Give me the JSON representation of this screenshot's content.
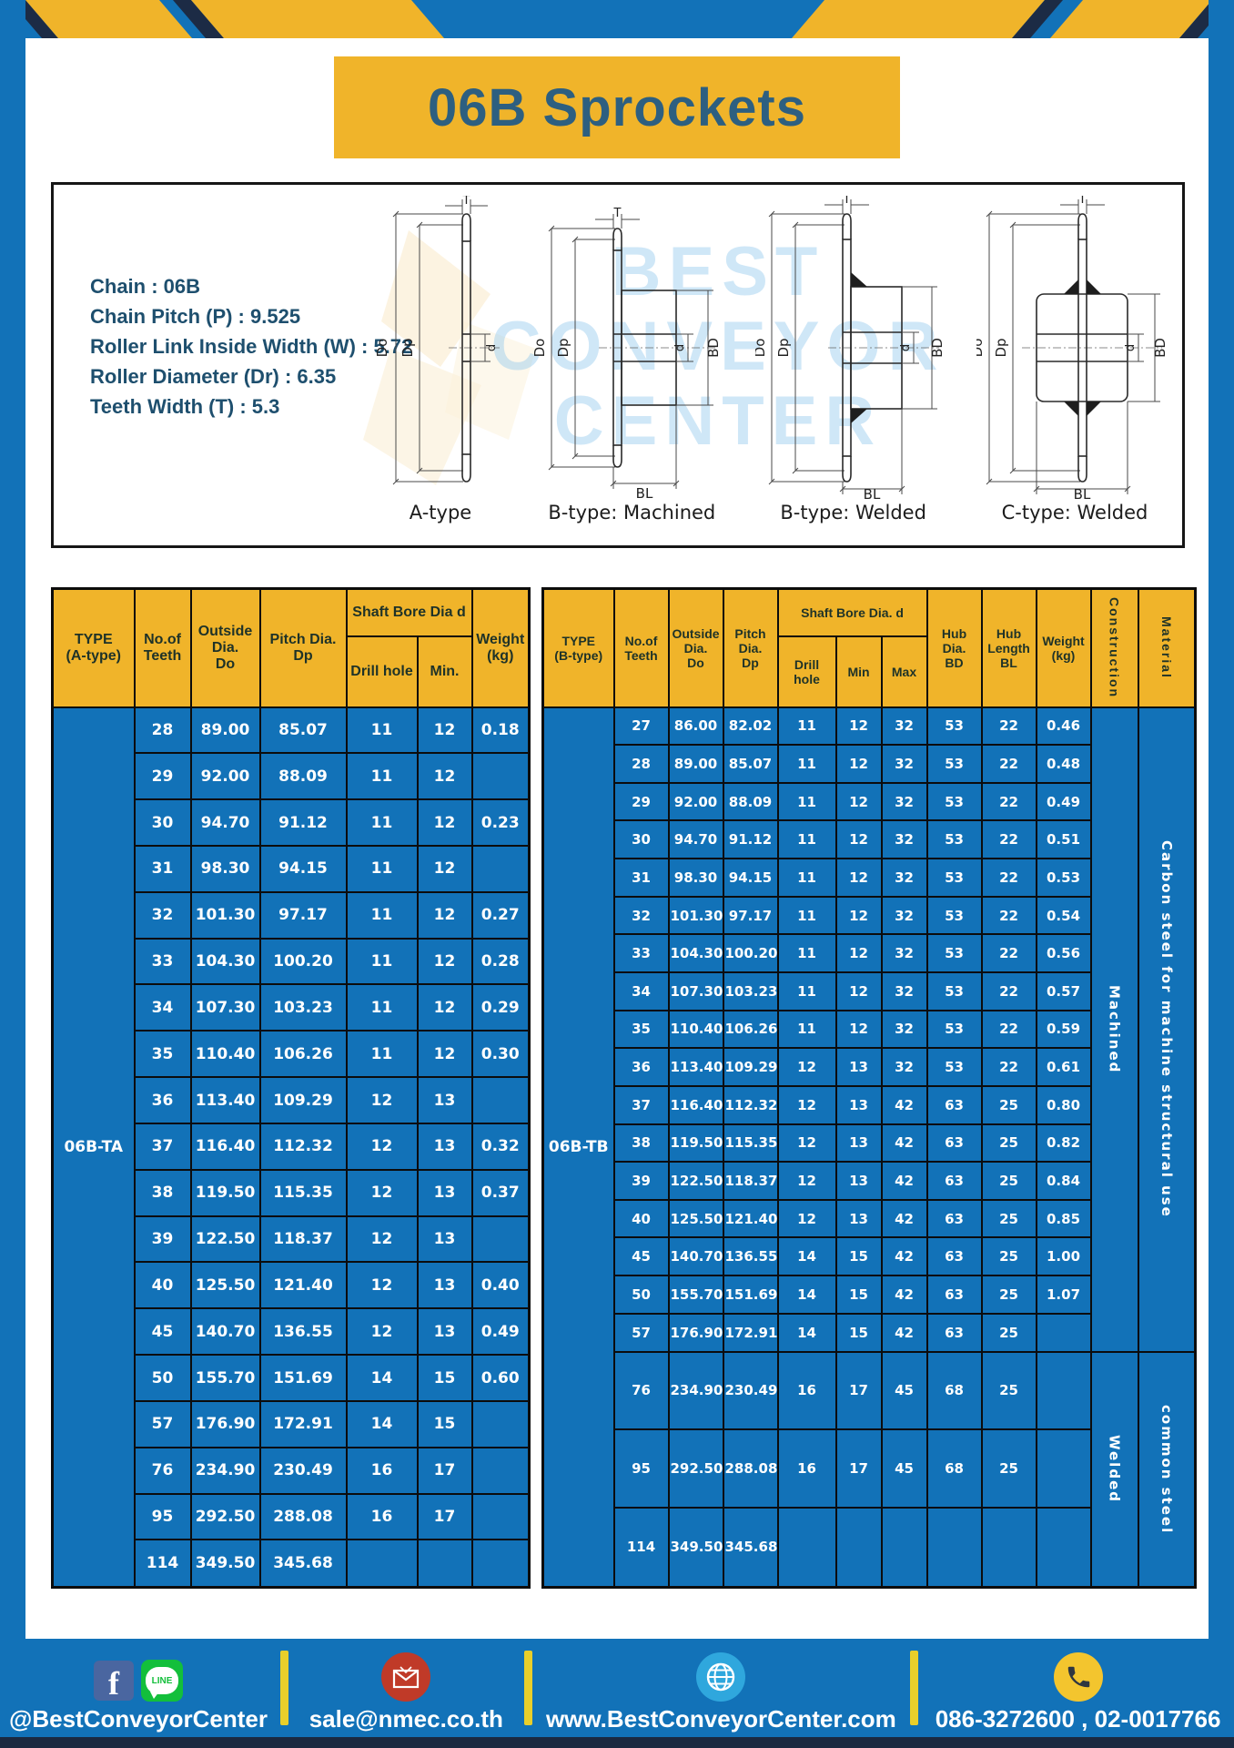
{
  "colors": {
    "frame_blue": "#1272b8",
    "accent_yellow": "#f0b42a",
    "shadow_navy": "#1c2b45",
    "title_teal": "#2d5f80",
    "table_header_yellow": "#f0b42a",
    "table_body_blue": "#1272b8",
    "footer_divider_yellow": "#e9cf2b"
  },
  "header": {
    "title": "06B Sprockets"
  },
  "specs": {
    "lines": [
      "Chain : 06B",
      "Chain Pitch (P) : 9.525",
      "Roller Link Inside Width (W) : 5.72",
      "Roller Diameter (Dr) : 6.35",
      "Teeth Width (T) : 5.3"
    ]
  },
  "watermark": {
    "lines": [
      "BEST",
      "CONVEYOR",
      "CENTER"
    ]
  },
  "drawings": [
    {
      "caption": "A-type",
      "dims": {
        "t": "T",
        "do": "Do",
        "dp": "Dp",
        "d": "d"
      }
    },
    {
      "caption": "B-type: Machined",
      "dims": {
        "t": "T",
        "do": "Do",
        "dp": "Dp",
        "d": "d",
        "bd": "BD",
        "bl": "BL"
      }
    },
    {
      "caption": "B-type: Welded",
      "dims": {
        "t": "T",
        "do": "Do",
        "dp": "Dp",
        "d": "d",
        "bd": "BD",
        "bl": "BL"
      }
    },
    {
      "caption": "C-type: Welded",
      "dims": {
        "t": "T",
        "do": "Do",
        "dp": "Dp",
        "d": "d",
        "bd": "BD",
        "bl": "BL"
      }
    }
  ],
  "table_a": {
    "headers": {
      "type": "TYPE\n(A-type)",
      "teeth": "No.of\nTeeth",
      "outside": "Outside\nDia.\nDo",
      "pitch": "Pitch Dia.\nDp",
      "shaft_bore": "Shaft Bore Dia d",
      "drill": "Drill hole",
      "min": "Min.",
      "weight": "Weight\n(kg)"
    },
    "type_label": "06B-TA",
    "rows": [
      [
        "28",
        "89.00",
        "85.07",
        "11",
        "12",
        "0.18"
      ],
      [
        "29",
        "92.00",
        "88.09",
        "11",
        "12",
        ""
      ],
      [
        "30",
        "94.70",
        "91.12",
        "11",
        "12",
        "0.23"
      ],
      [
        "31",
        "98.30",
        "94.15",
        "11",
        "12",
        ""
      ],
      [
        "32",
        "101.30",
        "97.17",
        "11",
        "12",
        "0.27"
      ],
      [
        "33",
        "104.30",
        "100.20",
        "11",
        "12",
        "0.28"
      ],
      [
        "34",
        "107.30",
        "103.23",
        "11",
        "12",
        "0.29"
      ],
      [
        "35",
        "110.40",
        "106.26",
        "11",
        "12",
        "0.30"
      ],
      [
        "36",
        "113.40",
        "109.29",
        "12",
        "13",
        ""
      ],
      [
        "37",
        "116.40",
        "112.32",
        "12",
        "13",
        "0.32"
      ],
      [
        "38",
        "119.50",
        "115.35",
        "12",
        "13",
        "0.37"
      ],
      [
        "39",
        "122.50",
        "118.37",
        "12",
        "13",
        ""
      ],
      [
        "40",
        "125.50",
        "121.40",
        "12",
        "13",
        "0.40"
      ],
      [
        "45",
        "140.70",
        "136.55",
        "12",
        "13",
        "0.49"
      ],
      [
        "50",
        "155.70",
        "151.69",
        "14",
        "15",
        "0.60"
      ],
      [
        "57",
        "176.90",
        "172.91",
        "14",
        "15",
        ""
      ],
      [
        "76",
        "234.90",
        "230.49",
        "16",
        "17",
        ""
      ],
      [
        "95",
        "292.50",
        "288.08",
        "16",
        "17",
        ""
      ],
      [
        "114",
        "349.50",
        "345.68",
        "",
        "",
        ""
      ]
    ]
  },
  "table_b": {
    "headers": {
      "type": "TYPE\n(B-type)",
      "teeth": "No.of\nTeeth",
      "outside": "Outside\nDia.\nDo",
      "pitch": "Pitch\nDia.\nDp",
      "shaft_bore": "Shaft Bore Dia. d",
      "drill": "Drill hole",
      "min": "Min",
      "max": "Max",
      "hub_dia": "Hub\nDia.\nBD",
      "hub_len": "Hub\nLength\nBL",
      "weight": "Weight\n(kg)",
      "construction": "Construction",
      "material": "Material"
    },
    "type_label": "06B-TB",
    "construction": [
      {
        "label": "Machined",
        "rows": 17
      },
      {
        "label": "Welded",
        "rows": 3
      }
    ],
    "material": [
      {
        "label": "Carbon steel for machine structural use",
        "rows": 17
      },
      {
        "label": "common steel",
        "rows": 3
      }
    ],
    "rows": [
      [
        "27",
        "86.00",
        "82.02",
        "11",
        "12",
        "32",
        "53",
        "22",
        "0.46"
      ],
      [
        "28",
        "89.00",
        "85.07",
        "11",
        "12",
        "32",
        "53",
        "22",
        "0.48"
      ],
      [
        "29",
        "92.00",
        "88.09",
        "11",
        "12",
        "32",
        "53",
        "22",
        "0.49"
      ],
      [
        "30",
        "94.70",
        "91.12",
        "11",
        "12",
        "32",
        "53",
        "22",
        "0.51"
      ],
      [
        "31",
        "98.30",
        "94.15",
        "11",
        "12",
        "32",
        "53",
        "22",
        "0.53"
      ],
      [
        "32",
        "101.30",
        "97.17",
        "11",
        "12",
        "32",
        "53",
        "22",
        "0.54"
      ],
      [
        "33",
        "104.30",
        "100.20",
        "11",
        "12",
        "32",
        "53",
        "22",
        "0.56"
      ],
      [
        "34",
        "107.30",
        "103.23",
        "11",
        "12",
        "32",
        "53",
        "22",
        "0.57"
      ],
      [
        "35",
        "110.40",
        "106.26",
        "11",
        "12",
        "32",
        "53",
        "22",
        "0.59"
      ],
      [
        "36",
        "113.40",
        "109.29",
        "12",
        "13",
        "32",
        "53",
        "22",
        "0.61"
      ],
      [
        "37",
        "116.40",
        "112.32",
        "12",
        "13",
        "42",
        "63",
        "25",
        "0.80"
      ],
      [
        "38",
        "119.50",
        "115.35",
        "12",
        "13",
        "42",
        "63",
        "25",
        "0.82"
      ],
      [
        "39",
        "122.50",
        "118.37",
        "12",
        "13",
        "42",
        "63",
        "25",
        "0.84"
      ],
      [
        "40",
        "125.50",
        "121.40",
        "12",
        "13",
        "42",
        "63",
        "25",
        "0.85"
      ],
      [
        "45",
        "140.70",
        "136.55",
        "14",
        "15",
        "42",
        "63",
        "25",
        "1.00"
      ],
      [
        "50",
        "155.70",
        "151.69",
        "14",
        "15",
        "42",
        "63",
        "25",
        "1.07"
      ],
      [
        "57",
        "176.90",
        "172.91",
        "14",
        "15",
        "42",
        "63",
        "25",
        ""
      ],
      [
        "76",
        "234.90",
        "230.49",
        "16",
        "17",
        "45",
        "68",
        "25",
        ""
      ],
      [
        "95",
        "292.50",
        "288.08",
        "16",
        "17",
        "45",
        "68",
        "25",
        ""
      ],
      [
        "114",
        "349.50",
        "345.68",
        "",
        "",
        "",
        "",
        "",
        ""
      ]
    ]
  },
  "footer": {
    "social_label": "@BestConveyorCenter",
    "line_badge": "LINE",
    "email": "sale@nmec.co.th",
    "website": "www.BestConveyorCenter.com",
    "phone": "086-3272600 , 02-0017766"
  }
}
